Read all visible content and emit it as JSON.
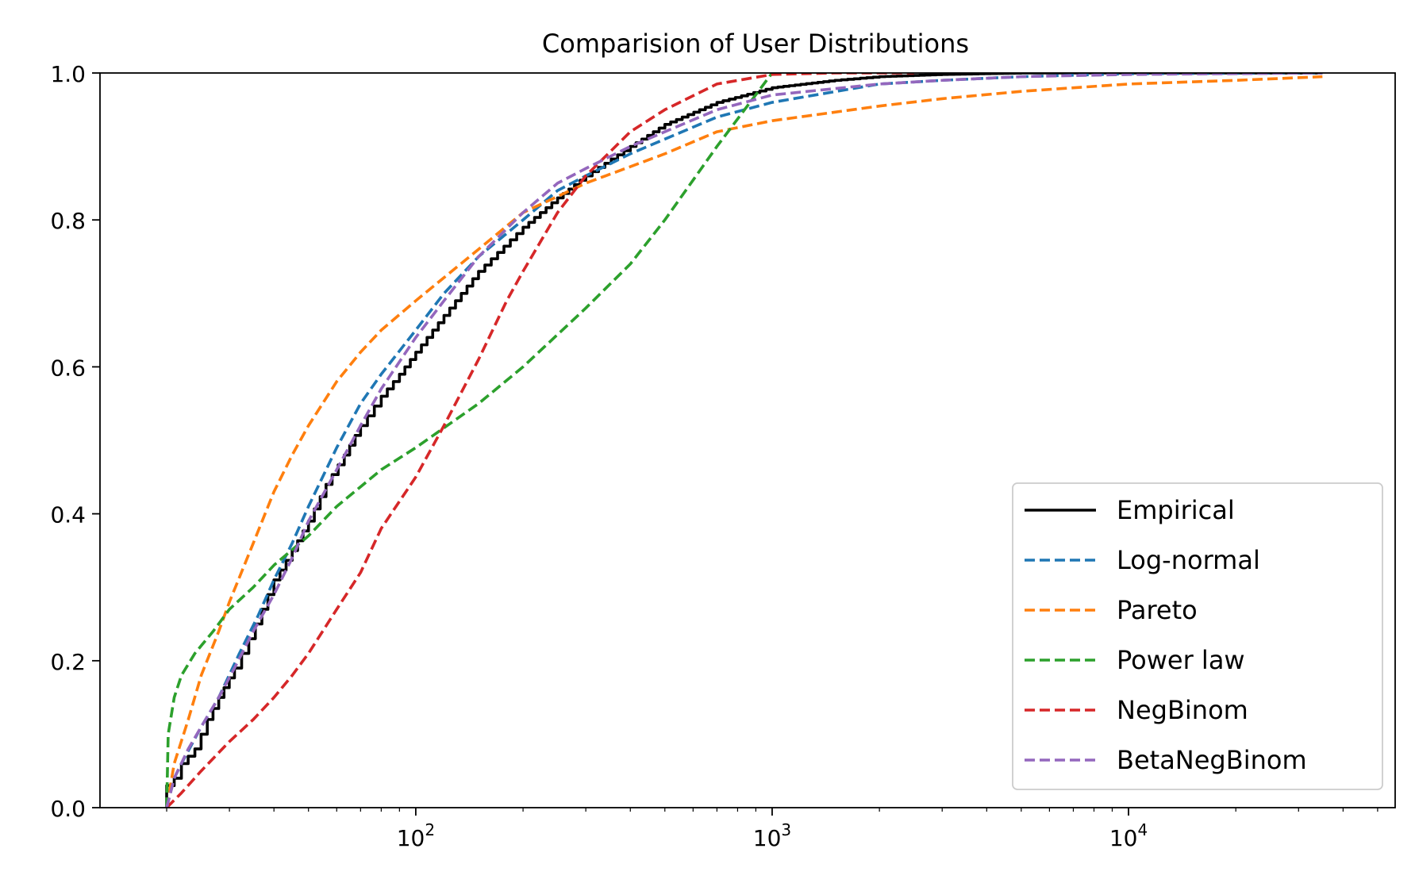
{
  "chart_data": {
    "type": "line",
    "title": "Comparision of User Distributions",
    "xlabel": "",
    "ylabel": "",
    "xscale": "log",
    "xlim": [
      13,
      56000
    ],
    "ylim": [
      0,
      1
    ],
    "grid": false,
    "legend_position": "lower-right",
    "x_ticks": [
      {
        "value": 100,
        "base": "10",
        "exp": "2"
      },
      {
        "value": 1000,
        "base": "10",
        "exp": "3"
      },
      {
        "value": 10000,
        "base": "10",
        "exp": "4"
      }
    ],
    "y_ticks": [
      {
        "value": 0,
        "label": "0.0"
      },
      {
        "value": 0.2,
        "label": "0.2"
      },
      {
        "value": 0.4,
        "label": "0.4"
      },
      {
        "value": 0.6,
        "label": "0.6"
      },
      {
        "value": 0.8,
        "label": "0.8"
      },
      {
        "value": 1,
        "label": "1.0"
      }
    ],
    "series": [
      {
        "name": "Empirical",
        "color": "#000000",
        "style": "solid",
        "step": true,
        "points": [
          [
            20,
            0.0
          ],
          [
            20,
            0.03
          ],
          [
            21,
            0.04
          ],
          [
            22,
            0.06
          ],
          [
            24,
            0.08
          ],
          [
            26,
            0.12
          ],
          [
            28,
            0.15
          ],
          [
            31,
            0.19
          ],
          [
            34,
            0.23
          ],
          [
            37,
            0.27
          ],
          [
            40,
            0.31
          ],
          [
            45,
            0.35
          ],
          [
            50,
            0.39
          ],
          [
            56,
            0.44
          ],
          [
            63,
            0.48
          ],
          [
            70,
            0.52
          ],
          [
            80,
            0.56
          ],
          [
            90,
            0.59
          ],
          [
            100,
            0.62
          ],
          [
            120,
            0.67
          ],
          [
            150,
            0.73
          ],
          [
            200,
            0.79
          ],
          [
            250,
            0.83
          ],
          [
            300,
            0.86
          ],
          [
            400,
            0.9
          ],
          [
            500,
            0.93
          ],
          [
            700,
            0.96
          ],
          [
            1000,
            0.98
          ],
          [
            1500,
            0.99
          ],
          [
            2000,
            0.995
          ],
          [
            3000,
            0.998
          ],
          [
            5000,
            1.0
          ],
          [
            35000,
            1.0
          ]
        ]
      },
      {
        "name": "Log-normal",
        "color": "#1f77b4",
        "style": "dashed",
        "points": [
          [
            20,
            0.0
          ],
          [
            21,
            0.04
          ],
          [
            22,
            0.06
          ],
          [
            25,
            0.11
          ],
          [
            28,
            0.15
          ],
          [
            32,
            0.21
          ],
          [
            36,
            0.26
          ],
          [
            40,
            0.31
          ],
          [
            45,
            0.36
          ],
          [
            50,
            0.41
          ],
          [
            60,
            0.49
          ],
          [
            70,
            0.55
          ],
          [
            80,
            0.59
          ],
          [
            100,
            0.65
          ],
          [
            120,
            0.7
          ],
          [
            150,
            0.75
          ],
          [
            200,
            0.8
          ],
          [
            250,
            0.84
          ],
          [
            300,
            0.86
          ],
          [
            400,
            0.89
          ],
          [
            500,
            0.91
          ],
          [
            700,
            0.94
          ],
          [
            1000,
            0.96
          ],
          [
            2000,
            0.985
          ],
          [
            3000,
            0.99
          ],
          [
            5000,
            0.995
          ],
          [
            10000,
            0.999
          ],
          [
            35000,
            1.0
          ]
        ]
      },
      {
        "name": "Pareto",
        "color": "#ff7f0e",
        "style": "dashed",
        "points": [
          [
            20,
            0.0
          ],
          [
            21,
            0.06
          ],
          [
            23,
            0.12
          ],
          [
            25,
            0.18
          ],
          [
            28,
            0.24
          ],
          [
            30,
            0.28
          ],
          [
            35,
            0.36
          ],
          [
            40,
            0.43
          ],
          [
            45,
            0.48
          ],
          [
            50,
            0.52
          ],
          [
            60,
            0.58
          ],
          [
            70,
            0.62
          ],
          [
            80,
            0.65
          ],
          [
            100,
            0.69
          ],
          [
            150,
            0.76
          ],
          [
            200,
            0.81
          ],
          [
            300,
            0.85
          ],
          [
            500,
            0.89
          ],
          [
            700,
            0.92
          ],
          [
            1000,
            0.935
          ],
          [
            2000,
            0.955
          ],
          [
            3000,
            0.965
          ],
          [
            5000,
            0.975
          ],
          [
            10000,
            0.985
          ],
          [
            20000,
            0.99
          ],
          [
            35000,
            0.995
          ]
        ]
      },
      {
        "name": "Power law",
        "color": "#2ca02c",
        "style": "dashed",
        "points": [
          [
            20,
            0.0
          ],
          [
            20.2,
            0.1
          ],
          [
            21,
            0.15
          ],
          [
            22,
            0.18
          ],
          [
            24,
            0.21
          ],
          [
            27,
            0.24
          ],
          [
            30,
            0.27
          ],
          [
            35,
            0.3
          ],
          [
            40,
            0.33
          ],
          [
            50,
            0.37
          ],
          [
            60,
            0.41
          ],
          [
            80,
            0.46
          ],
          [
            100,
            0.49
          ],
          [
            150,
            0.55
          ],
          [
            200,
            0.6
          ],
          [
            300,
            0.68
          ],
          [
            400,
            0.74
          ],
          [
            500,
            0.8
          ],
          [
            700,
            0.9
          ],
          [
            1000,
            1.0
          ]
        ]
      },
      {
        "name": "NegBinom",
        "color": "#d62728",
        "style": "dashed",
        "points": [
          [
            20,
            0.0
          ],
          [
            22,
            0.02
          ],
          [
            25,
            0.05
          ],
          [
            30,
            0.09
          ],
          [
            35,
            0.12
          ],
          [
            40,
            0.15
          ],
          [
            45,
            0.18
          ],
          [
            50,
            0.21
          ],
          [
            60,
            0.27
          ],
          [
            70,
            0.32
          ],
          [
            80,
            0.38
          ],
          [
            100,
            0.45
          ],
          [
            120,
            0.52
          ],
          [
            150,
            0.61
          ],
          [
            180,
            0.69
          ],
          [
            200,
            0.73
          ],
          [
            250,
            0.81
          ],
          [
            300,
            0.86
          ],
          [
            400,
            0.92
          ],
          [
            500,
            0.95
          ],
          [
            700,
            0.985
          ],
          [
            1000,
            0.998
          ],
          [
            1500,
            1.0
          ],
          [
            2500,
            1.0
          ]
        ]
      },
      {
        "name": "BetaNegBinom",
        "color": "#9467bd",
        "style": "dashed",
        "points": [
          [
            20,
            0.0
          ],
          [
            21,
            0.04
          ],
          [
            23,
            0.08
          ],
          [
            25,
            0.11
          ],
          [
            28,
            0.15
          ],
          [
            31,
            0.19
          ],
          [
            35,
            0.24
          ],
          [
            40,
            0.29
          ],
          [
            45,
            0.34
          ],
          [
            50,
            0.39
          ],
          [
            60,
            0.46
          ],
          [
            70,
            0.52
          ],
          [
            80,
            0.57
          ],
          [
            100,
            0.64
          ],
          [
            120,
            0.69
          ],
          [
            150,
            0.75
          ],
          [
            200,
            0.81
          ],
          [
            250,
            0.85
          ],
          [
            300,
            0.87
          ],
          [
            400,
            0.9
          ],
          [
            500,
            0.92
          ],
          [
            700,
            0.95
          ],
          [
            1000,
            0.97
          ],
          [
            2000,
            0.985
          ],
          [
            3000,
            0.99
          ],
          [
            5000,
            0.995
          ],
          [
            10000,
            0.998
          ],
          [
            35000,
            1.0
          ]
        ]
      }
    ]
  }
}
